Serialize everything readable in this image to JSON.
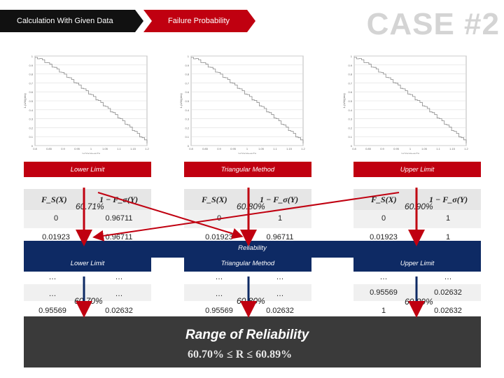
{
  "header": {
    "tab1_label": "Calculation With Given Data",
    "tab2_label": "Failure Probability",
    "case_label": "CASE #2"
  },
  "charts": {
    "ytick_labels": [
      "1",
      "0.9",
      "0.8",
      "0.7",
      "0.6",
      "0.5",
      "0.4",
      "0.3",
      "0.2",
      "0.1",
      "0"
    ],
    "xtick_labels": [
      "0.8",
      "0.85",
      "0.9",
      "0.95",
      "1",
      "1.05",
      "1.1",
      "1.15",
      "1.2"
    ],
    "ylabel": "1-(1/Xi)(rev)",
    "xlabel": "1/(3(Xi/Xg))(Ti)"
  },
  "sections": [
    {
      "label": "Lower Limit",
      "col1_header": "F_S(X)",
      "col2_header": "1 − F_σ(Y)",
      "rows": [
        [
          "0",
          "0.96711"
        ],
        [
          "0.01923",
          "0.96711"
        ]
      ],
      "percent": "60.71%",
      "bottom_label": "Lower Limit",
      "bottom_rows": [
        [
          "…",
          "…"
        ],
        [
          "…",
          "…"
        ],
        [
          "0.95569",
          "0.02632"
        ]
      ],
      "bottom_percent": "60.70%"
    },
    {
      "label": "Triangular Method",
      "col1_header": "F_S(X)",
      "col2_header": "1 − F_σ(Y)",
      "rows": [
        [
          "0",
          "1"
        ],
        [
          "0.01923",
          "0.96711"
        ]
      ],
      "percent": "60.80%",
      "bottom_label": "Triangular Method",
      "bottom_rows": [
        [
          "…",
          "…"
        ],
        [
          "…",
          "…"
        ],
        [
          "0.95569",
          "0.02632"
        ]
      ],
      "bottom_percent": "60.80%"
    },
    {
      "label": "Upper Limit",
      "col1_header": "F_S(X)",
      "col2_header": "1 − F_σ(Y)",
      "rows": [
        [
          "0",
          "1"
        ],
        [
          "0.01923",
          "1"
        ]
      ],
      "percent": "60.90%",
      "bottom_label": "Upper Limit",
      "bottom_rows": [
        [
          "…",
          "…"
        ],
        [
          "0.95569",
          "0.02632"
        ],
        [
          "1",
          "0.02632"
        ]
      ],
      "bottom_percent": "60.89%"
    }
  ],
  "reliability_label": "Reliability",
  "range": {
    "title": "Range of Reliability",
    "expression": "60.70% ≤ R ≤ 60.89%"
  },
  "colors": {
    "red": "#c00010",
    "navy": "#0e2a64",
    "dark": "#3a3a3a"
  }
}
